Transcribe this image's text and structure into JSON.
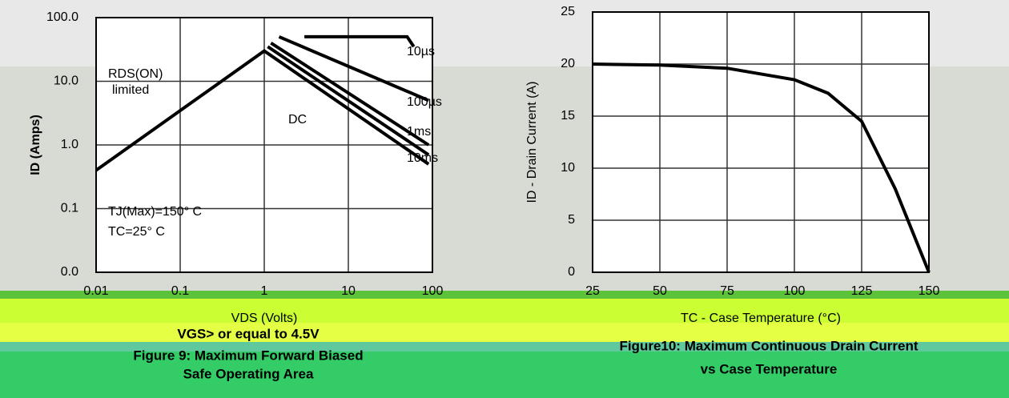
{
  "chart_data": [
    {
      "type": "line",
      "log_x": true,
      "log_y": true,
      "grid": true,
      "x_label": "VDS (Volts)",
      "y_label": "ID (Amps)",
      "xlim": [
        0.01,
        100
      ],
      "xticks": [
        0.01,
        0.1,
        1,
        10,
        100
      ],
      "ylim": [
        0.01,
        100
      ],
      "yticks": [
        {
          "value": 100,
          "label": "100.0"
        },
        {
          "value": 10,
          "label": "10.0"
        },
        {
          "value": 1,
          "label": "1.0"
        },
        {
          "value": 0.1,
          "label": "0.1"
        },
        {
          "value": 0.01,
          "label": "0.0"
        }
      ],
      "series": [
        {
          "name": "10µs",
          "color": "#000000",
          "x": [
            3,
            50,
            60
          ],
          "values": [
            50,
            50,
            35
          ]
        },
        {
          "name": "100µs",
          "color": "#000000",
          "x": [
            1.5,
            90
          ],
          "values": [
            50,
            5
          ]
        },
        {
          "name": "1ms",
          "color": "#000000",
          "x": [
            1.2,
            90
          ],
          "values": [
            40,
            1
          ]
        },
        {
          "name": "10ms",
          "color": "#000000",
          "x": [
            1.1,
            90
          ],
          "values": [
            35,
            0.7
          ]
        },
        {
          "name": "DC",
          "color": "#000000",
          "x": [
            0.01,
            1,
            90
          ],
          "values": [
            0.4,
            30,
            0.5
          ]
        }
      ],
      "annotations": [
        "RDS(ON)",
        "limited",
        "TJ(Max)=150° C",
        "TC=25° C"
      ],
      "captions": [
        "VGS> or equal to 4.5V",
        "Figure 9: Maximum Forward Biased",
        "Safe Operating Area"
      ]
    },
    {
      "type": "line",
      "grid": true,
      "x_label": "TC - Case Temperature (°C)",
      "y_label": "ID - Drain Current (A)",
      "xlim": [
        25,
        150
      ],
      "xticks": [
        25,
        50,
        75,
        100,
        125,
        150
      ],
      "ylim": [
        0,
        25
      ],
      "yticks": [
        0,
        5,
        10,
        15,
        20,
        25
      ],
      "series": [
        {
          "color": "#000000",
          "x": [
            25,
            50,
            75,
            100,
            112.5,
            125,
            137.5,
            150
          ],
          "values": [
            20,
            19.9,
            19.6,
            18.5,
            17.2,
            14.5,
            8,
            0
          ]
        }
      ],
      "captions": [
        "Figure10: Maximum Continuous Drain Current",
        "vs Case Temperature"
      ]
    }
  ]
}
